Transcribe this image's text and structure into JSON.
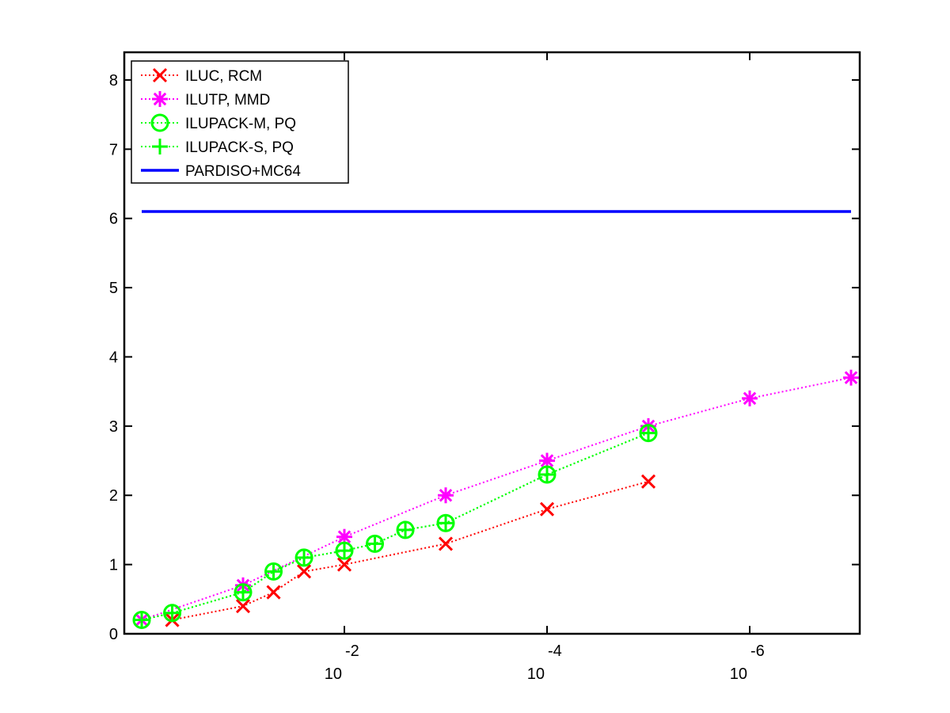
{
  "chart_data": {
    "type": "line",
    "title": "",
    "xlabel": "",
    "ylabel": "",
    "x_scale": "log-reversed",
    "xlim": [
      1,
      1e-07
    ],
    "ylim": [
      0,
      8.4
    ],
    "x_ticks": [
      {
        "value": 0.01,
        "base": "10",
        "exp": "-2"
      },
      {
        "value": 0.0001,
        "base": "10",
        "exp": "-4"
      },
      {
        "value": 1e-06,
        "base": "10",
        "exp": "-6"
      }
    ],
    "y_ticks": [
      "0",
      "1",
      "2",
      "3",
      "4",
      "5",
      "6",
      "7",
      "8"
    ],
    "grid": false,
    "legend_position": "top-left",
    "series": [
      {
        "name": "ILUC, RCM",
        "color": "#ff0000",
        "marker": "x",
        "line": "dotted",
        "points": [
          [
            0.5,
            0.2
          ],
          [
            0.1,
            0.4
          ],
          [
            0.05,
            0.6
          ],
          [
            0.025,
            0.9
          ],
          [
            0.01,
            1.0
          ],
          [
            0.001,
            1.3
          ],
          [
            0.0001,
            1.8
          ],
          [
            1e-05,
            2.2
          ]
        ]
      },
      {
        "name": "ILUTP, MMD",
        "color": "#ff00ff",
        "marker": "asterisk",
        "line": "dotted",
        "points": [
          [
            1,
            0.2
          ],
          [
            0.1,
            0.7
          ],
          [
            0.01,
            1.4
          ],
          [
            0.001,
            2.0
          ],
          [
            0.0001,
            2.5
          ],
          [
            1e-05,
            3.0
          ],
          [
            1e-06,
            3.4
          ],
          [
            1e-07,
            3.7
          ]
        ]
      },
      {
        "name": "ILUPACK-M, PQ",
        "color": "#00ff00",
        "marker": "circle",
        "line": "dotted",
        "points": [
          [
            1,
            0.2
          ],
          [
            0.5,
            0.3
          ],
          [
            0.1,
            0.6
          ],
          [
            0.05,
            0.9
          ],
          [
            0.025,
            1.1
          ],
          [
            0.01,
            1.2
          ],
          [
            0.005,
            1.3
          ],
          [
            0.0025,
            1.5
          ],
          [
            0.001,
            1.6
          ],
          [
            0.0001,
            2.3
          ],
          [
            1e-05,
            2.9
          ]
        ]
      },
      {
        "name": "ILUPACK-S, PQ",
        "color": "#00ff00",
        "marker": "plus",
        "line": "dotted",
        "points": [
          [
            1,
            0.2
          ],
          [
            0.5,
            0.3
          ],
          [
            0.1,
            0.6
          ],
          [
            0.05,
            0.9
          ],
          [
            0.025,
            1.1
          ],
          [
            0.01,
            1.2
          ],
          [
            0.005,
            1.3
          ],
          [
            0.0025,
            1.5
          ],
          [
            0.001,
            1.6
          ],
          [
            0.0001,
            2.3
          ],
          [
            1e-05,
            2.9
          ]
        ]
      },
      {
        "name": "PARDISO+MC64",
        "color": "#0000ff",
        "marker": "none",
        "line": "solid",
        "points": [
          [
            1,
            6.1
          ],
          [
            1e-07,
            6.1
          ]
        ]
      }
    ]
  }
}
